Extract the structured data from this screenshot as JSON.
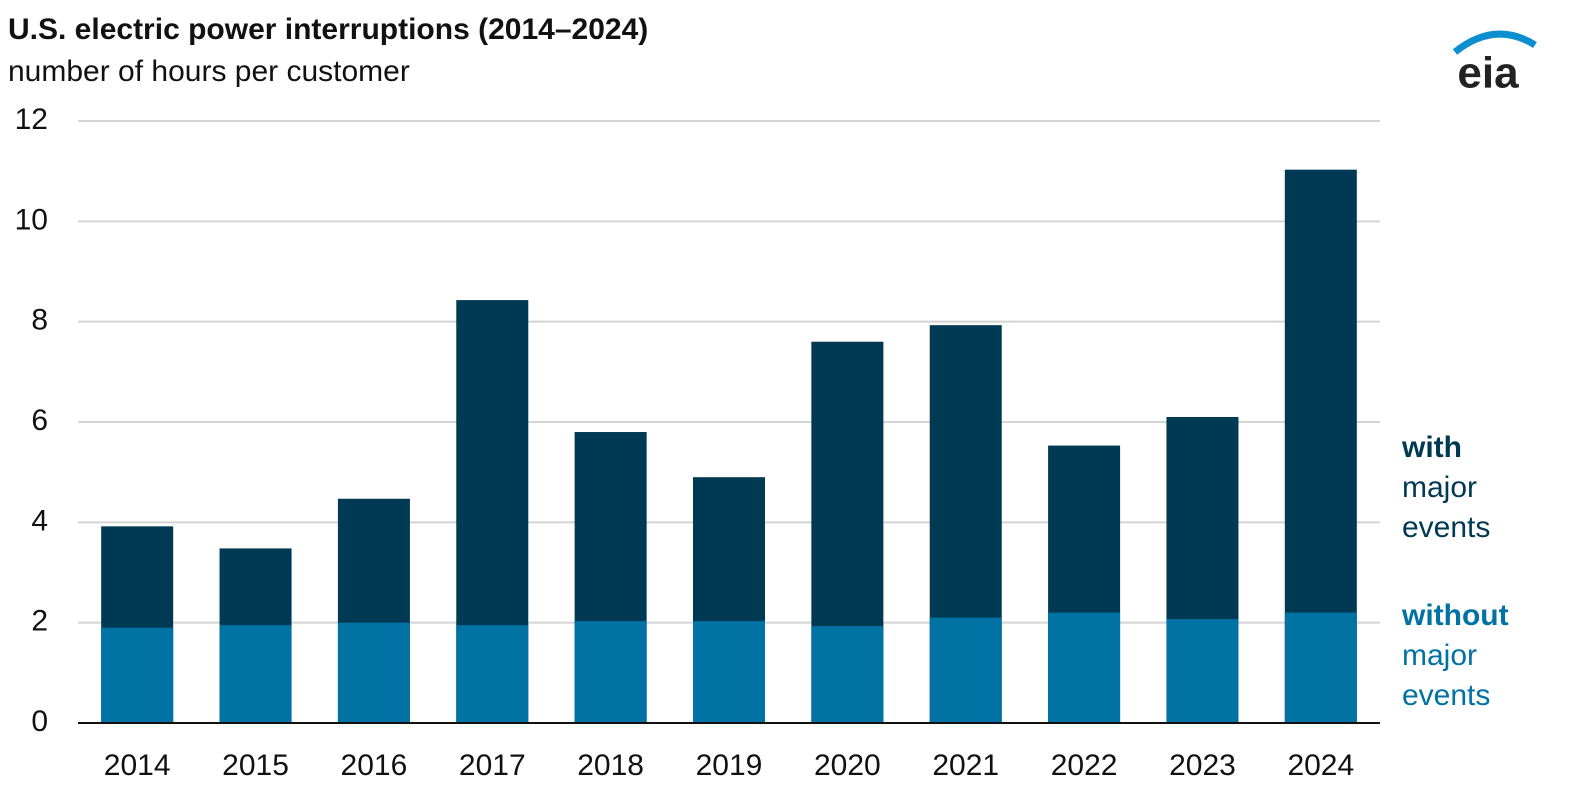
{
  "chart_data": {
    "type": "bar",
    "title": "U.S. electric power interruptions (2014–2024)",
    "subtitle": "number of hours per customer",
    "logo": "eia",
    "categories": [
      "2014",
      "2015",
      "2016",
      "2017",
      "2018",
      "2019",
      "2020",
      "2021",
      "2022",
      "2023",
      "2024"
    ],
    "series": [
      {
        "name": "with major events",
        "color": "#003953",
        "values": [
          3.92,
          3.48,
          4.47,
          8.43,
          5.8,
          4.9,
          7.6,
          7.93,
          5.53,
          6.1,
          11.03
        ]
      },
      {
        "name": "without major events",
        "color": "#0072a3",
        "values": [
          1.9,
          1.95,
          2.0,
          1.95,
          2.03,
          2.03,
          1.93,
          2.1,
          2.2,
          2.07,
          2.2
        ]
      }
    ],
    "ylim": [
      0,
      12
    ],
    "yticks": [
      0,
      2,
      4,
      6,
      8,
      10,
      12
    ],
    "grid": true
  }
}
